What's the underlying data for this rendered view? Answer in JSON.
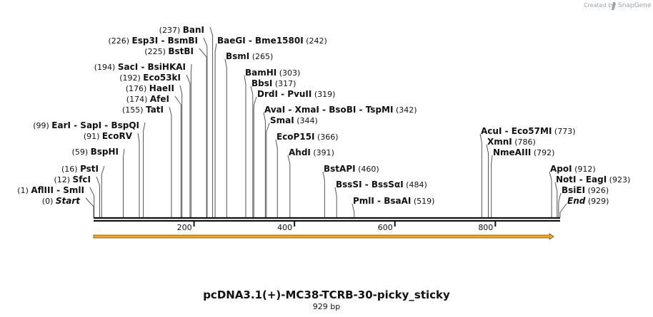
{
  "credit": {
    "prefix": "Created by",
    "brand": "SnapGene"
  },
  "title": "pcDNA3.1(+)-MC38-TCRB-30-picky_sticky",
  "length_label": "929 bp",
  "length": 929,
  "ticks": [
    "200",
    "400",
    "600",
    "800"
  ],
  "tick_values": [
    200,
    400,
    600,
    800
  ],
  "feature": {
    "name": "orf-arrow",
    "color": "#f5a623",
    "start": 1,
    "end": 929
  },
  "sites": [
    {
      "pos": 0,
      "pos_label": "(0)",
      "names": [
        "Start"
      ],
      "italic": true
    },
    {
      "pos": 1,
      "pos_label": "(1)",
      "names": [
        "AflIII",
        "SmlI"
      ]
    },
    {
      "pos": 12,
      "pos_label": "(12)",
      "names": [
        "SfcI"
      ]
    },
    {
      "pos": 16,
      "pos_label": "(16)",
      "names": [
        "PstI"
      ]
    },
    {
      "pos": 59,
      "pos_label": "(59)",
      "names": [
        "BspHI"
      ]
    },
    {
      "pos": 91,
      "pos_label": "(91)",
      "names": [
        "EcoRV"
      ]
    },
    {
      "pos": 99,
      "pos_label": "(99)",
      "names": [
        "EarI",
        "SapI",
        "BspQI"
      ]
    },
    {
      "pos": 155,
      "pos_label": "(155)",
      "names": [
        "TatI"
      ]
    },
    {
      "pos": 174,
      "pos_label": "(174)",
      "names": [
        "AfeI"
      ]
    },
    {
      "pos": 176,
      "pos_label": "(176)",
      "names": [
        "HaeII"
      ]
    },
    {
      "pos": 192,
      "pos_label": "(192)",
      "names": [
        "Eco53kI"
      ]
    },
    {
      "pos": 194,
      "pos_label": "(194)",
      "names": [
        "SacI",
        "BsiHKAI"
      ]
    },
    {
      "pos": 225,
      "pos_label": "(225)",
      "names": [
        "BstBI"
      ]
    },
    {
      "pos": 226,
      "pos_label": "(226)",
      "names": [
        "Esp3I",
        "BsmBI"
      ]
    },
    {
      "pos": 237,
      "pos_label": "(237)",
      "names": [
        "BanI"
      ]
    },
    {
      "pos": 242,
      "pos_label": "(242)",
      "names": [
        "BaeGI",
        "Bme1580I"
      ]
    },
    {
      "pos": 265,
      "pos_label": "(265)",
      "names": [
        "BsmI"
      ]
    },
    {
      "pos": 303,
      "pos_label": "(303)",
      "names": [
        "BamHI"
      ]
    },
    {
      "pos": 317,
      "pos_label": "(317)",
      "names": [
        "BbsI"
      ]
    },
    {
      "pos": 319,
      "pos_label": "(319)",
      "names": [
        "DrdI",
        "PvuII"
      ]
    },
    {
      "pos": 342,
      "pos_label": "(342)",
      "names": [
        "AvaI",
        "XmaI",
        "BsoBI",
        "TspMI"
      ]
    },
    {
      "pos": 344,
      "pos_label": "(344)",
      "names": [
        "SmaI"
      ]
    },
    {
      "pos": 366,
      "pos_label": "(366)",
      "names": [
        "EcoP15I"
      ]
    },
    {
      "pos": 391,
      "pos_label": "(391)",
      "names": [
        "AhdI"
      ]
    },
    {
      "pos": 460,
      "pos_label": "(460)",
      "names": [
        "BstAPI"
      ]
    },
    {
      "pos": 484,
      "pos_label": "(484)",
      "names": [
        "BssSI",
        "BssSαI"
      ]
    },
    {
      "pos": 519,
      "pos_label": "(519)",
      "names": [
        "PmlI",
        "BsaAI"
      ]
    },
    {
      "pos": 773,
      "pos_label": "(773)",
      "names": [
        "AcuI",
        "Eco57MI"
      ]
    },
    {
      "pos": 786,
      "pos_label": "(786)",
      "names": [
        "XmnI"
      ]
    },
    {
      "pos": 792,
      "pos_label": "(792)",
      "names": [
        "NmeAIII"
      ]
    },
    {
      "pos": 912,
      "pos_label": "(912)",
      "names": [
        "ApoI"
      ]
    },
    {
      "pos": 923,
      "pos_label": "(923)",
      "names": [
        "NotI",
        "EagI"
      ]
    },
    {
      "pos": 926,
      "pos_label": "(926)",
      "names": [
        "BsiEI"
      ]
    },
    {
      "pos": 929,
      "pos_label": "(929)",
      "names": [
        "End"
      ],
      "italic": true
    }
  ]
}
